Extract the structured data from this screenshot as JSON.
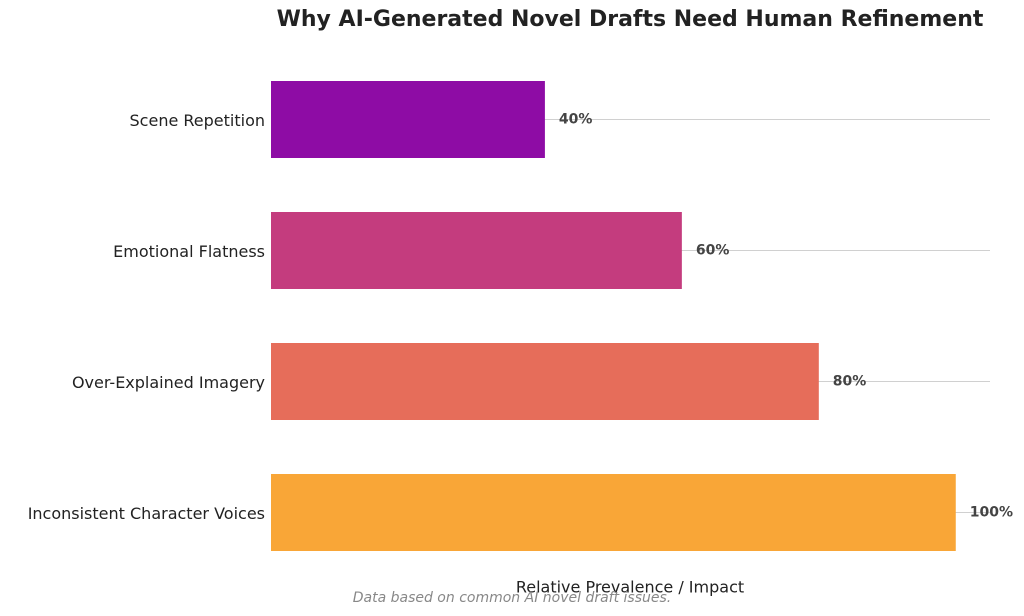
{
  "chart_data": {
    "type": "bar",
    "orientation": "horizontal",
    "title": "Why AI-Generated Novel Drafts Need Human Refinement",
    "xlabel": "Relative Prevalence / Impact",
    "footnote": "Data based on common AI novel draft issues.",
    "categories": [
      "Scene Repetition",
      "Emotional Flatness",
      "Over-Explained Imagery",
      "Inconsistent Character Voices"
    ],
    "values": [
      40,
      60,
      80,
      100
    ],
    "value_labels": [
      "40%",
      "60%",
      "80%",
      "100%"
    ],
    "colors": [
      "#8e0ca5",
      "#c43c7e",
      "#e66d5a",
      "#f9a637"
    ],
    "xlim": [
      0,
      105
    ],
    "grid": true
  }
}
